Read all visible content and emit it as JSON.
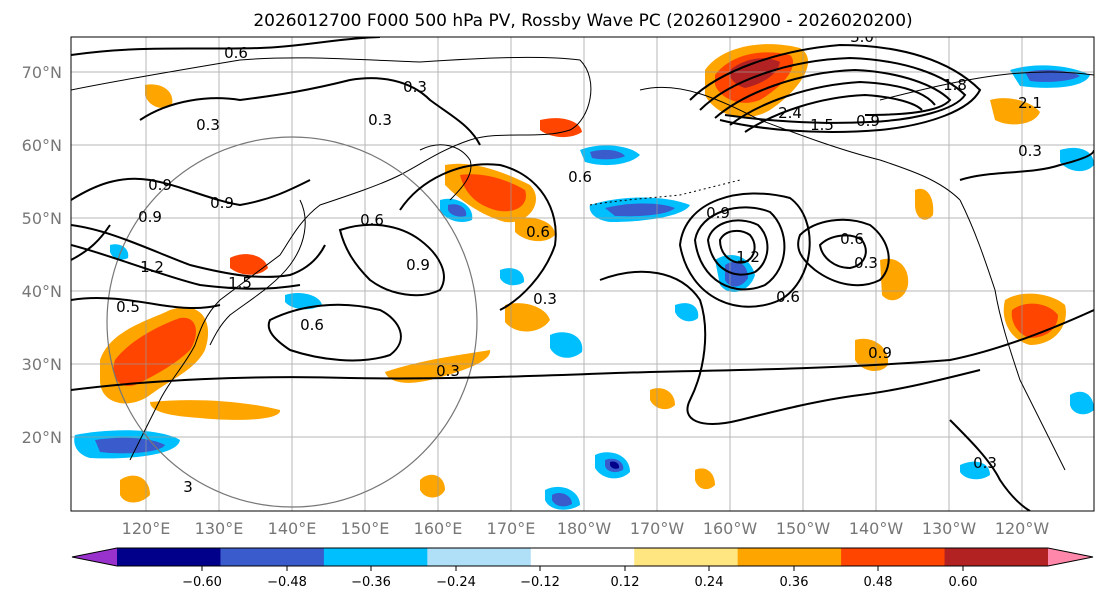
{
  "title": "2026012700 F000 500 hPa PV, Rossby Wave PC (2026012900 - 2026020200)",
  "map": {
    "lat_labels": [
      "70°N",
      "60°N",
      "50°N",
      "40°N",
      "30°N",
      "20°N"
    ],
    "lon_labels": [
      "120°E",
      "130°E",
      "140°E",
      "150°E",
      "160°E",
      "170°E",
      "180°W",
      "170°W",
      "160°W",
      "150°W",
      "140°W",
      "130°W",
      "120°W"
    ],
    "contour_labels": [
      "0.6",
      "0.3",
      "0.3",
      "0.3",
      "0.9",
      "0.9",
      "0.9",
      "1.2",
      "1.5",
      "0.5",
      "0.6",
      "0.9",
      "0.6",
      "0.3",
      "0.6",
      "0.3",
      "0.6",
      "0.9",
      "1.2",
      "0.6",
      "0.6",
      "0.3",
      "0.9",
      "3.0",
      "2.4",
      "1.5",
      "0.9",
      "1.8",
      "2.1",
      "0.3",
      "0.3",
      "3"
    ]
  },
  "colorbar": {
    "ticks": [
      "−0.60",
      "−0.48",
      "−0.36",
      "−0.24",
      "−0.12",
      "0.12",
      "0.24",
      "0.36",
      "0.48",
      "0.60"
    ],
    "colors": [
      "#9932cc",
      "#00008b",
      "#3a5bcc",
      "#00bfff",
      "#b0e0f8",
      "#ffffff",
      "#ffe680",
      "#ffa500",
      "#ff4500",
      "#b22222",
      "#ff88aa"
    ],
    "extend": "both"
  }
}
